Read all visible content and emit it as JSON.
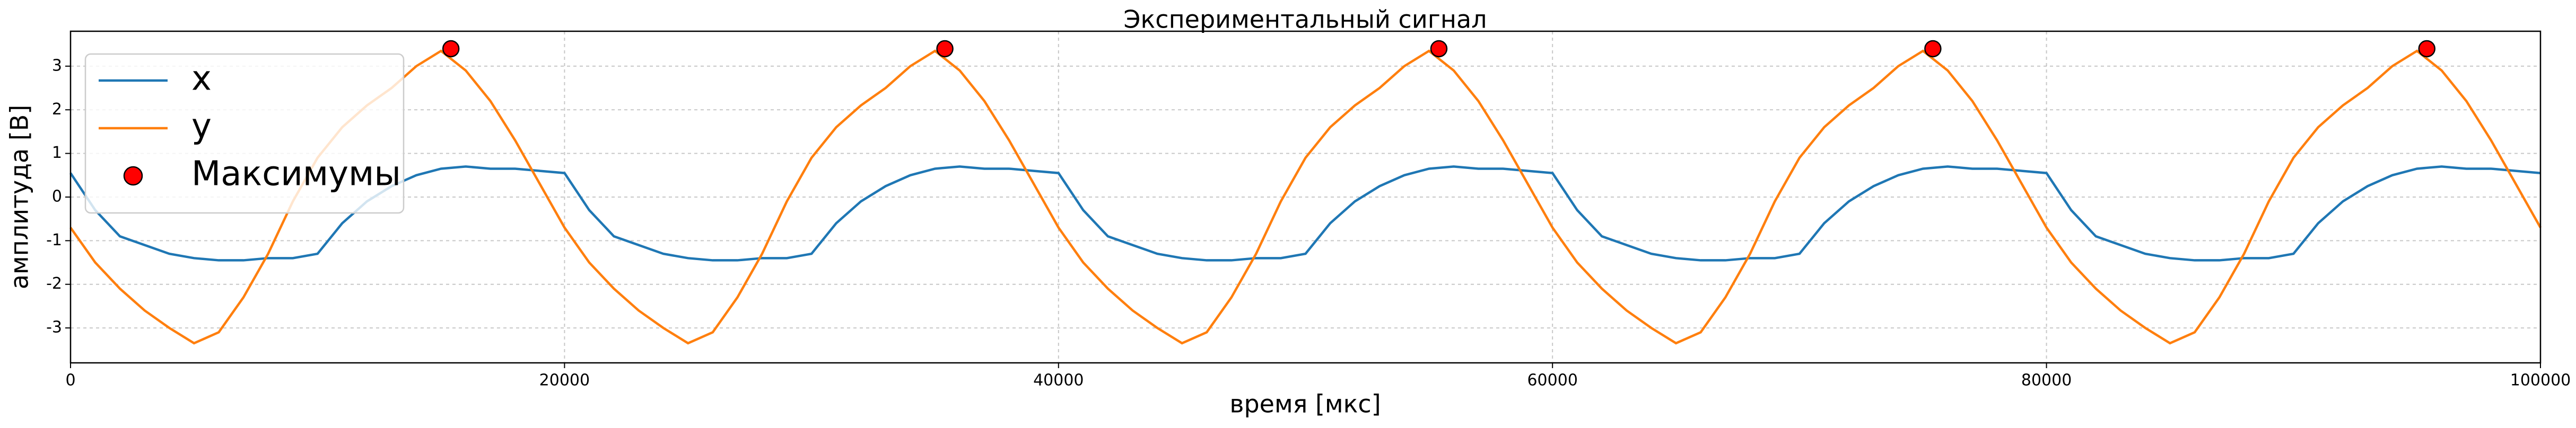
{
  "chart_data": {
    "type": "line",
    "title": "Экспериментальный сигнал",
    "xlabel": "время [мкс]",
    "ylabel": "амплитуда [В]",
    "x": [
      0,
      1000,
      2000,
      3000,
      4000,
      5000,
      6000,
      7000,
      8000,
      9000,
      10000,
      11000,
      12000,
      13000,
      14000,
      15000,
      16000,
      17000,
      18000,
      19000,
      20000,
      21000,
      22000,
      23000,
      24000,
      25000,
      26000,
      27000,
      28000,
      29000,
      30000,
      31000,
      32000,
      33000,
      34000,
      35000,
      36000,
      37000,
      38000,
      39000,
      40000,
      41000,
      42000,
      43000,
      44000,
      45000,
      46000,
      47000,
      48000,
      49000,
      50000,
      51000,
      52000,
      53000,
      54000,
      55000,
      56000,
      57000,
      58000,
      59000,
      60000,
      61000,
      62000,
      63000,
      64000,
      65000,
      66000,
      67000,
      68000,
      69000,
      70000,
      71000,
      72000,
      73000,
      74000,
      75000,
      76000,
      77000,
      78000,
      79000,
      80000,
      81000,
      82000,
      83000,
      84000,
      85000,
      86000,
      87000,
      88000,
      89000,
      90000,
      91000,
      92000,
      93000,
      94000,
      95000,
      96000,
      97000,
      98000,
      99000,
      100000
    ],
    "series": [
      {
        "name": "x",
        "color": "#1f77b4",
        "values": [
          0.55,
          -0.3,
          -0.9,
          -1.1,
          -1.3,
          -1.4,
          -1.45,
          -1.45,
          -1.4,
          -1.4,
          -1.3,
          -0.6,
          -0.1,
          0.25,
          0.5,
          0.65,
          0.7,
          0.65,
          0.65,
          0.6,
          0.55,
          -0.3,
          -0.9,
          -1.1,
          -1.3,
          -1.4,
          -1.45,
          -1.45,
          -1.4,
          -1.4,
          -1.3,
          -0.6,
          -0.1,
          0.25,
          0.5,
          0.65,
          0.7,
          0.65,
          0.65,
          0.6,
          0.55,
          -0.3,
          -0.9,
          -1.1,
          -1.3,
          -1.4,
          -1.45,
          -1.45,
          -1.4,
          -1.4,
          -1.3,
          -0.6,
          -0.1,
          0.25,
          0.5,
          0.65,
          0.7,
          0.65,
          0.65,
          0.6,
          0.55,
          -0.3,
          -0.9,
          -1.1,
          -1.3,
          -1.4,
          -1.45,
          -1.45,
          -1.4,
          -1.4,
          -1.3,
          -0.6,
          -0.1,
          0.25,
          0.5,
          0.65,
          0.7,
          0.65,
          0.65,
          0.6,
          0.55,
          -0.3,
          -0.9,
          -1.1,
          -1.3,
          -1.4,
          -1.45,
          -1.45,
          -1.4,
          -1.4,
          -1.3,
          -0.6,
          -0.1,
          0.25,
          0.5,
          0.65,
          0.7,
          0.65,
          0.65,
          0.6,
          0.55
        ]
      },
      {
        "name": "y",
        "color": "#ff7f0e",
        "values": [
          -0.7,
          -1.5,
          -2.1,
          -2.6,
          -3,
          -3.35,
          -3.1,
          -2.3,
          -1.3,
          -0.1,
          0.9,
          1.6,
          2.1,
          2.5,
          3,
          3.35,
          2.9,
          2.2,
          1.3,
          0.3,
          -0.7,
          -1.5,
          -2.1,
          -2.6,
          -3,
          -3.35,
          -3.1,
          -2.3,
          -1.3,
          -0.1,
          0.9,
          1.6,
          2.1,
          2.5,
          3,
          3.35,
          2.9,
          2.2,
          1.3,
          0.3,
          -0.7,
          -1.5,
          -2.1,
          -2.6,
          -3,
          -3.35,
          -3.1,
          -2.3,
          -1.3,
          -0.1,
          0.9,
          1.6,
          2.1,
          2.5,
          3,
          3.35,
          2.9,
          2.2,
          1.3,
          0.3,
          -0.7,
          -1.5,
          -2.1,
          -2.6,
          -3,
          -3.35,
          -3.1,
          -2.3,
          -1.3,
          -0.1,
          0.9,
          1.6,
          2.1,
          2.5,
          3,
          3.35,
          2.9,
          2.2,
          1.3,
          0.3,
          -0.7,
          -1.5,
          -2.1,
          -2.6,
          -3,
          -3.35,
          -3.1,
          -2.3,
          -1.3,
          -0.1,
          0.9,
          1.6,
          2.1,
          2.5,
          3,
          3.35,
          2.9,
          2.2,
          1.3,
          0.3,
          -0.7
        ]
      },
      {
        "name": "Максимумы",
        "type": "scatter",
        "color": "#ff0000",
        "x": [
          15400,
          35400,
          55400,
          75400,
          95400
        ],
        "values": [
          3.4,
          3.4,
          3.4,
          3.4,
          3.4
        ]
      }
    ],
    "xlim": [
      0,
      100000
    ],
    "ylim": [
      -3.8,
      3.8
    ],
    "xticks": [
      0,
      20000,
      40000,
      60000,
      80000,
      100000
    ],
    "yticks": [
      -3,
      -2,
      -1,
      0,
      1,
      2,
      3
    ],
    "grid": true,
    "legend": "upper left"
  }
}
